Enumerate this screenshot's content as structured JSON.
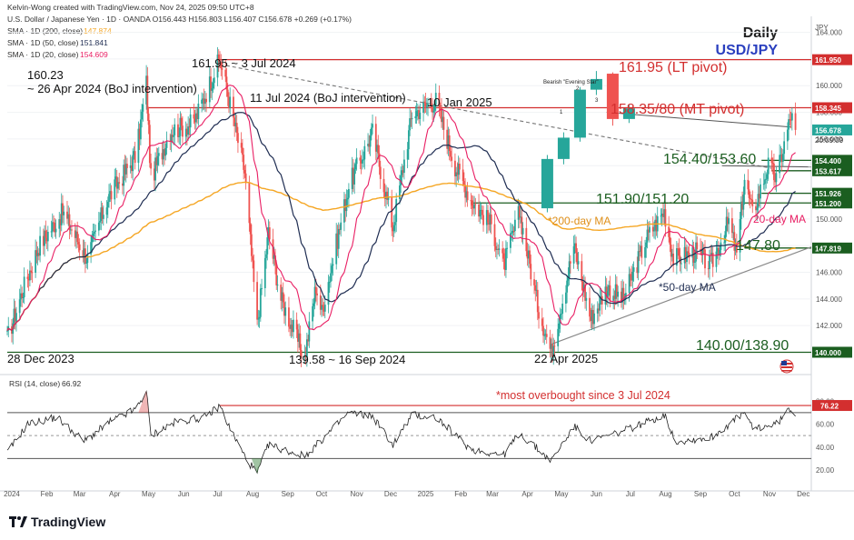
{
  "header": {
    "line1": "Kelvin-Wong created with TradingView.com, Nov 24, 2025 09:50 UTC+8",
    "line2": "U.S. Dollar / Japanese Yen · 1D · OANDA  O156.443  H156.803  L156.407  C156.678  +0.269 (+0.17%)",
    "sma200_label": "SMA · 1D (200, close)",
    "sma200_value": "147.874",
    "sma50_label": "SMA · 1D (50, close)",
    "sma50_value": "151.841",
    "sma20_label": "SMA · 1D (20, close)",
    "sma20_value": "154.609",
    "timeframe": "Daily",
    "symbol": "USD/JPY",
    "currency": "JPY"
  },
  "colors": {
    "up": "#26a69a",
    "down": "#ef5350",
    "sma200": "#f5a623",
    "sma50": "#1f2d52",
    "sma20": "#e91e63",
    "resistance": "#d32f2f",
    "support": "#1b5e20",
    "rsi": "#222222",
    "rsi_marker": "#d32f2f"
  },
  "annotations": {
    "high_2024": "161.95 ~ 3 Jul 2024",
    "boj_apr": "160.23",
    "boj_apr_note": "~ 26 Apr 2024 (BoJ intervention)",
    "boj_jul": "11 Jul 2024 (BoJ intervention)",
    "jan_2025": "10 Jan 2025",
    "evening_star": "Bearish \"Evening Star\"",
    "star_1": "1",
    "star_2": "2",
    "star_3": "3",
    "lt_pivot": "161.95 (LT pivot)",
    "mt_pivot": "158.35/80 (MT pivot)",
    "sup_1": "154.40/153.60",
    "sup_2": "151.90/151.20",
    "sup_3": "147.80",
    "sup_4": "140.00/138.90",
    "ma20_label": "20-day MA",
    "ma200_label": "*200-day MA",
    "ma50_label": "*50-day MA",
    "low_2023": "28 Dec 2023",
    "low_sep": "139.58 ~ 16 Sep 2024",
    "low_apr": "22 Apr 2025",
    "rsi_note": "*most overbought since 3 Jul 2024"
  },
  "chart_data": {
    "type": "candlestick",
    "price_axis": {
      "ticks": [
        164,
        162,
        160,
        158,
        156,
        154,
        152,
        150,
        148,
        146,
        144,
        142,
        140
      ],
      "tick_labels": [
        "164.000",
        "162.000",
        "160.000",
        "158.000",
        "156.000",
        "154.000",
        "152.000",
        "150.000",
        "148.000",
        "146.000",
        "144.000",
        "142.000",
        "140.000"
      ],
      "range": [
        138.6,
        165.2
      ]
    },
    "price_tags": [
      {
        "value": 161.95,
        "label": "161.950",
        "color": "#d32f2f"
      },
      {
        "value": 158.345,
        "label": "158.345",
        "color": "#d32f2f"
      },
      {
        "value": 156.678,
        "label": "156.678",
        "color": "#26a69a"
      },
      {
        "value": 154.4,
        "label": "154.400",
        "color": "#1b5e20"
      },
      {
        "value": 153.617,
        "label": "153.617",
        "color": "#1b5e20"
      },
      {
        "value": 151.926,
        "label": "151.926",
        "color": "#1b5e20"
      },
      {
        "value": 151.2,
        "label": "151.200",
        "color": "#1b5e20"
      },
      {
        "value": 147.819,
        "label": "147.819",
        "color": "#1b5e20"
      },
      {
        "value": 140.0,
        "label": "140.000",
        "color": "#1b5e20"
      }
    ],
    "countdown": "20:09:09",
    "time_axis": {
      "labels": [
        "2024",
        "Feb",
        "Mar",
        "Apr",
        "May",
        "Jun",
        "Jul",
        "Aug",
        "Sep",
        "Oct",
        "Nov",
        "Dec",
        "2025",
        "Feb",
        "Mar",
        "Apr",
        "May",
        "Jun",
        "Jul",
        "Aug",
        "Sep",
        "Oct",
        "Nov",
        "Dec"
      ],
      "start": "2023-12-28",
      "end": "2025-12-08"
    },
    "price_anchors": [
      [
        "2023-12-28",
        141.0
      ],
      [
        "2024-01-10",
        144.5
      ],
      [
        "2024-01-25",
        148.0
      ],
      [
        "2024-02-15",
        150.5
      ],
      [
        "2024-03-08",
        147.0
      ],
      [
        "2024-03-25",
        151.4
      ],
      [
        "2024-04-20",
        154.8
      ],
      [
        "2024-04-29",
        160.23
      ],
      [
        "2024-05-03",
        153.0
      ],
      [
        "2024-05-20",
        156.6
      ],
      [
        "2024-06-10",
        157.2
      ],
      [
        "2024-06-28",
        161.0
      ],
      [
        "2024-07-03",
        161.95
      ],
      [
        "2024-07-11",
        159.0
      ],
      [
        "2024-07-25",
        153.5
      ],
      [
        "2024-08-05",
        142.0
      ],
      [
        "2024-08-15",
        149.0
      ],
      [
        "2024-08-26",
        144.0
      ],
      [
        "2024-09-16",
        139.58
      ],
      [
        "2024-09-26",
        145.0
      ],
      [
        "2024-10-01",
        143.0
      ],
      [
        "2024-10-25",
        152.5
      ],
      [
        "2024-11-15",
        156.5
      ],
      [
        "2024-12-03",
        149.4
      ],
      [
        "2024-12-20",
        157.9
      ],
      [
        "2025-01-10",
        158.87
      ],
      [
        "2025-01-27",
        154.0
      ],
      [
        "2025-02-10",
        151.5
      ],
      [
        "2025-02-28",
        149.5
      ],
      [
        "2025-03-11",
        146.5
      ],
      [
        "2025-03-25",
        150.5
      ],
      [
        "2025-04-10",
        143.5
      ],
      [
        "2025-04-22",
        140.0
      ],
      [
        "2025-05-12",
        148.0
      ],
      [
        "2025-05-27",
        142.5
      ],
      [
        "2025-06-10",
        144.8
      ],
      [
        "2025-06-25",
        144.0
      ],
      [
        "2025-07-15",
        148.5
      ],
      [
        "2025-07-31",
        150.6
      ],
      [
        "2025-08-08",
        147.0
      ],
      [
        "2025-08-28",
        147.5
      ],
      [
        "2025-09-10",
        146.5
      ],
      [
        "2025-09-26",
        149.8
      ],
      [
        "2025-10-03",
        147.3
      ],
      [
        "2025-10-10",
        153.0
      ],
      [
        "2025-10-17",
        150.4
      ],
      [
        "2025-10-31",
        154.0
      ],
      [
        "2025-11-07",
        153.0
      ],
      [
        "2025-11-20",
        157.8
      ],
      [
        "2025-11-24",
        156.68
      ]
    ],
    "evening_star_candles": [
      {
        "open": 150.8,
        "close": 154.5,
        "high": 154.8,
        "low": 150.5
      },
      {
        "open": 154.5,
        "close": 156.1,
        "high": 156.5,
        "low": 154.1
      },
      {
        "open": 156.1,
        "close": 159.7,
        "high": 159.9,
        "low": 155.8
      },
      {
        "open": 159.7,
        "close": 160.5,
        "high": 161.1,
        "low": 159.3
      },
      {
        "open": 160.9,
        "close": 157.5,
        "high": 161.0,
        "low": 157.0
      },
      {
        "open": 157.5,
        "close": 158.3,
        "high": 158.6,
        "low": 157.2
      }
    ],
    "rsi": {
      "label": "RSI (14, close)",
      "value": "66.92",
      "tick_labels": [
        "80.00",
        "60.00",
        "40.00",
        "20.00"
      ],
      "ticks": [
        80,
        60,
        40,
        20
      ],
      "range": [
        5,
        100
      ],
      "overbought": 70,
      "oversold": 30,
      "mid": 50,
      "marker": {
        "value": 76.22,
        "label": "76.22"
      },
      "anchors": [
        [
          "2023-12-28",
          35
        ],
        [
          "2024-01-15",
          60
        ],
        [
          "2024-02-10",
          66
        ],
        [
          "2024-03-05",
          45
        ],
        [
          "2024-03-28",
          62
        ],
        [
          "2024-04-20",
          73
        ],
        [
          "2024-04-29",
          89
        ],
        [
          "2024-05-03",
          50
        ],
        [
          "2024-05-25",
          62
        ],
        [
          "2024-06-20",
          66
        ],
        [
          "2024-07-03",
          76
        ],
        [
          "2024-07-11",
          58
        ],
        [
          "2024-07-26",
          30
        ],
        [
          "2024-08-05",
          17
        ],
        [
          "2024-08-15",
          42
        ],
        [
          "2024-09-16",
          32
        ],
        [
          "2024-10-01",
          46
        ],
        [
          "2024-10-25",
          70
        ],
        [
          "2024-11-15",
          67
        ],
        [
          "2024-12-03",
          42
        ],
        [
          "2024-12-20",
          68
        ],
        [
          "2025-01-10",
          66
        ],
        [
          "2025-02-10",
          38
        ],
        [
          "2025-03-11",
          33
        ],
        [
          "2025-03-25",
          52
        ],
        [
          "2025-04-22",
          28
        ],
        [
          "2025-05-12",
          58
        ],
        [
          "2025-05-27",
          45
        ],
        [
          "2025-06-25",
          54
        ],
        [
          "2025-07-31",
          68
        ],
        [
          "2025-08-10",
          45
        ],
        [
          "2025-09-10",
          48
        ],
        [
          "2025-10-10",
          70
        ],
        [
          "2025-10-17",
          56
        ],
        [
          "2025-11-07",
          60
        ],
        [
          "2025-11-20",
          74
        ],
        [
          "2025-11-24",
          66.92
        ]
      ]
    }
  },
  "branding": "TradingView"
}
